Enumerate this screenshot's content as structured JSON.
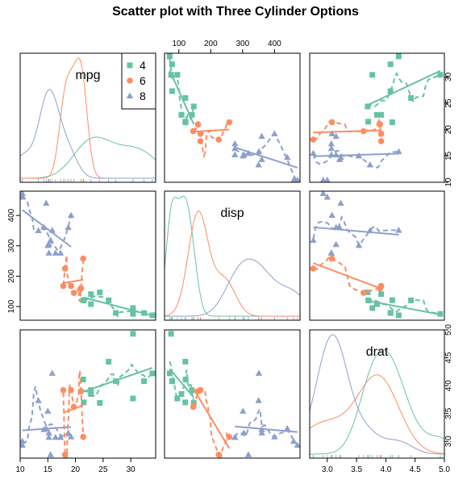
{
  "chart_data": {
    "type": "scatter",
    "title": "Scatter plot with Three Cylinder Options",
    "variables": [
      "mpg",
      "disp",
      "drat"
    ],
    "ticks": {
      "mpg": [
        10,
        15,
        20,
        25,
        30
      ],
      "disp": [
        100,
        200,
        300,
        400
      ],
      "drat": [
        3.0,
        3.5,
        4.0,
        4.5,
        5.0
      ]
    },
    "tick_labels": {
      "mpg": [
        "10",
        "15",
        "20",
        "25",
        "30"
      ],
      "disp": [
        "100",
        "200",
        "300",
        "400"
      ],
      "drat": [
        "3.0",
        "3.5",
        "4.0",
        "4.5",
        "5.0"
      ]
    },
    "ranges": {
      "mpg": [
        10,
        34.5
      ],
      "disp": [
        55,
        480
      ],
      "drat": [
        2.7,
        5.0
      ]
    },
    "legend": {
      "position": "top-right",
      "entries": [
        "4",
        "6",
        "8"
      ]
    },
    "series": [
      {
        "name": "4",
        "color": "#66c2a5",
        "marker": "square",
        "mpg": [
          22.8,
          24.4,
          22.8,
          32.4,
          30.4,
          33.9,
          21.5,
          27.3,
          26.0,
          30.4,
          21.4
        ],
        "disp": [
          108,
          146.7,
          140.8,
          78.7,
          75.7,
          71.1,
          120.1,
          79,
          120.3,
          95.1,
          121
        ],
        "drat": [
          3.85,
          3.69,
          3.92,
          4.08,
          4.93,
          4.22,
          3.7,
          4.08,
          4.43,
          3.77,
          4.11
        ]
      },
      {
        "name": "6",
        "color": "#fc8d62",
        "marker": "circle",
        "mpg": [
          21.0,
          21.0,
          21.4,
          18.1,
          19.2,
          17.8,
          19.7
        ],
        "disp": [
          160,
          160,
          258,
          225,
          167.6,
          167.6,
          145
        ],
        "drat": [
          3.9,
          3.9,
          3.08,
          2.76,
          3.92,
          3.92,
          3.62
        ]
      },
      {
        "name": "8",
        "color": "#8da0cb",
        "marker": "triangle",
        "mpg": [
          18.7,
          14.3,
          16.4,
          17.3,
          15.2,
          10.4,
          10.4,
          14.7,
          15.5,
          15.2,
          13.3,
          19.2,
          15.8,
          15.0
        ],
        "disp": [
          360,
          360,
          275.8,
          275.8,
          275.8,
          472,
          460,
          440,
          318,
          304,
          350,
          400,
          351,
          301
        ],
        "drat": [
          3.15,
          3.21,
          3.07,
          3.07,
          3.07,
          2.93,
          3.0,
          3.23,
          2.76,
          3.15,
          3.73,
          3.08,
          4.22,
          3.54
        ]
      }
    ]
  }
}
